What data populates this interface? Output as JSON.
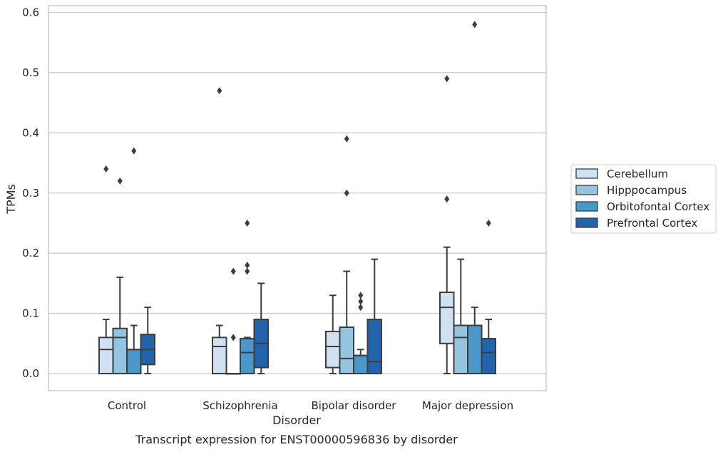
{
  "chart_data": {
    "type": "box",
    "xlabel": "Disorder",
    "ylabel": "TPMs",
    "caption": "Transcript expression for ENST00000596836 by disorder",
    "ylim": [
      -0.03,
      0.61
    ],
    "yticks": [
      "0.0",
      "0.1",
      "0.2",
      "0.3",
      "0.4",
      "0.5",
      "0.6"
    ],
    "grid": "horizontal",
    "legend_position": "right",
    "categories": [
      "Control",
      "Schizophrenia",
      "Bipolar disorder",
      "Major depression"
    ],
    "series": [
      {
        "name": "Cerebellum",
        "color": "#d0e1f2",
        "boxes": [
          {
            "min": 0.0,
            "q1": 0.0,
            "median": 0.04,
            "q3": 0.06,
            "max": 0.09,
            "outliers": [
              0.34
            ]
          },
          {
            "min": 0.0,
            "q1": 0.0,
            "median": 0.045,
            "q3": 0.06,
            "max": 0.08,
            "outliers": [
              0.47
            ]
          },
          {
            "min": 0.0,
            "q1": 0.01,
            "median": 0.045,
            "q3": 0.07,
            "max": 0.13,
            "outliers": []
          },
          {
            "min": 0.0,
            "q1": 0.05,
            "median": 0.11,
            "q3": 0.135,
            "max": 0.21,
            "outliers": [
              0.29,
              0.49
            ]
          }
        ]
      },
      {
        "name": "Hipppocampus",
        "color": "#94c4df",
        "boxes": [
          {
            "min": 0.0,
            "q1": 0.0,
            "median": 0.06,
            "q3": 0.075,
            "max": 0.16,
            "outliers": [
              0.32
            ]
          },
          {
            "min": 0.0,
            "q1": 0.0,
            "median": 0.0,
            "q3": 0.0,
            "max": 0.0,
            "outliers": [
              0.06,
              0.17
            ]
          },
          {
            "min": 0.0,
            "q1": 0.0,
            "median": 0.025,
            "q3": 0.077,
            "max": 0.17,
            "outliers": [
              0.3,
              0.39
            ]
          },
          {
            "min": 0.0,
            "q1": 0.0,
            "median": 0.06,
            "q3": 0.08,
            "max": 0.19,
            "outliers": []
          }
        ]
      },
      {
        "name": "Orbitofontal Cortex",
        "color": "#4a98c9",
        "boxes": [
          {
            "min": 0.0,
            "q1": 0.0,
            "median": 0.04,
            "q3": 0.04,
            "max": 0.08,
            "outliers": [
              0.37
            ]
          },
          {
            "min": 0.0,
            "q1": 0.0,
            "median": 0.035,
            "q3": 0.058,
            "max": 0.06,
            "outliers": [
              0.17,
              0.18,
              0.25
            ]
          },
          {
            "min": 0.0,
            "q1": 0.0,
            "median": 0.03,
            "q3": 0.03,
            "max": 0.04,
            "outliers": [
              0.11,
              0.12,
              0.13
            ]
          },
          {
            "min": 0.0,
            "q1": 0.0,
            "median": 0.08,
            "q3": 0.08,
            "max": 0.11,
            "outliers": [
              0.58
            ]
          }
        ]
      },
      {
        "name": "Prefrontal Cortex",
        "color": "#2164ab",
        "boxes": [
          {
            "min": 0.0,
            "q1": 0.015,
            "median": 0.04,
            "q3": 0.065,
            "max": 0.11,
            "outliers": []
          },
          {
            "min": 0.0,
            "q1": 0.01,
            "median": 0.05,
            "q3": 0.09,
            "max": 0.15,
            "outliers": []
          },
          {
            "min": 0.0,
            "q1": 0.0,
            "median": 0.02,
            "q3": 0.09,
            "max": 0.19,
            "outliers": []
          },
          {
            "min": 0.0,
            "q1": 0.0,
            "median": 0.035,
            "q3": 0.058,
            "max": 0.09,
            "outliers": [
              0.25
            ]
          }
        ]
      }
    ]
  }
}
